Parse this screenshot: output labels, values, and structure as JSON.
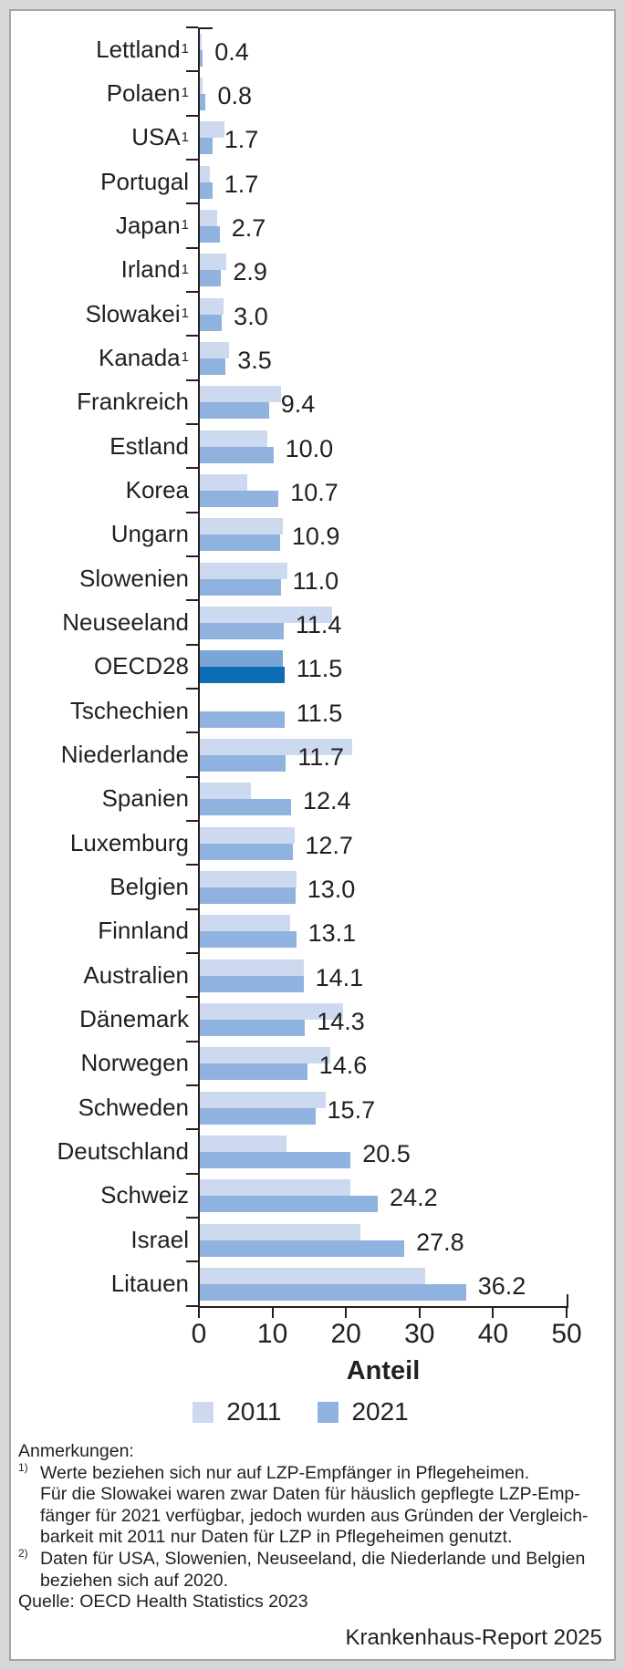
{
  "chart_data": {
    "type": "bar",
    "orientation": "horizontal",
    "xlabel": "Anteil",
    "xlim": [
      0,
      50
    ],
    "xticks": [
      0,
      10,
      20,
      30,
      40,
      50
    ],
    "grid": false,
    "legend_position": "bottom",
    "series_names": [
      "2011",
      "2021"
    ],
    "value_labels_shown_for": "2021",
    "rows": [
      {
        "label": "Lettland",
        "footnote_marker": "1",
        "v2011": 0.3,
        "v2021": 0.4,
        "value_label": "0.4",
        "highlight": false
      },
      {
        "label": "Polaen",
        "footnote_marker": "1",
        "v2011": 0.4,
        "v2021": 0.8,
        "value_label": "0.8",
        "highlight": false
      },
      {
        "label": "USA",
        "footnote_marker": "1",
        "v2011": 3.4,
        "v2021": 1.7,
        "value_label": "1.7",
        "highlight": false
      },
      {
        "label": "Portugal",
        "footnote_marker": "",
        "v2011": 1.4,
        "v2021": 1.7,
        "value_label": "1.7",
        "highlight": false
      },
      {
        "label": "Japan",
        "footnote_marker": "1",
        "v2011": 2.4,
        "v2021": 2.7,
        "value_label": "2.7",
        "highlight": false
      },
      {
        "label": "Irland",
        "footnote_marker": "1",
        "v2011": 3.6,
        "v2021": 2.9,
        "value_label": "2.9",
        "highlight": false
      },
      {
        "label": "Slowakei",
        "footnote_marker": "1",
        "v2011": 3.2,
        "v2021": 3.0,
        "value_label": "3.0",
        "highlight": false
      },
      {
        "label": "Kanada",
        "footnote_marker": "1",
        "v2011": 4.0,
        "v2021": 3.5,
        "value_label": "3.5",
        "highlight": false
      },
      {
        "label": "Frankreich",
        "footnote_marker": "",
        "v2011": 11.1,
        "v2021": 9.4,
        "value_label": "9.4",
        "highlight": false
      },
      {
        "label": "Estland",
        "footnote_marker": "",
        "v2011": 9.2,
        "v2021": 10.0,
        "value_label": "10.0",
        "highlight": false
      },
      {
        "label": "Korea",
        "footnote_marker": "",
        "v2011": 6.5,
        "v2021": 10.7,
        "value_label": "10.7",
        "highlight": false
      },
      {
        "label": "Ungarn",
        "footnote_marker": "",
        "v2011": 11.3,
        "v2021": 10.9,
        "value_label": "10.9",
        "highlight": false
      },
      {
        "label": "Slowenien",
        "footnote_marker": "",
        "v2011": 11.9,
        "v2021": 11.0,
        "value_label": "11.0",
        "highlight": false
      },
      {
        "label": "Neuseeland",
        "footnote_marker": "",
        "v2011": 18.0,
        "v2021": 11.4,
        "value_label": "11.4",
        "highlight": false
      },
      {
        "label": "OECD28",
        "footnote_marker": "",
        "v2011": 11.3,
        "v2021": 11.5,
        "value_label": "11.5",
        "highlight": true
      },
      {
        "label": "Tschechien",
        "footnote_marker": "",
        "v2011": null,
        "v2021": 11.5,
        "value_label": "11.5",
        "highlight": false
      },
      {
        "label": "Niederlande",
        "footnote_marker": "",
        "v2011": 20.7,
        "v2021": 11.7,
        "value_label": "11.7",
        "highlight": false
      },
      {
        "label": "Spanien",
        "footnote_marker": "",
        "v2011": 7.0,
        "v2021": 12.4,
        "value_label": "12.4",
        "highlight": false
      },
      {
        "label": "Luxemburg",
        "footnote_marker": "",
        "v2011": 12.9,
        "v2021": 12.7,
        "value_label": "12.7",
        "highlight": false
      },
      {
        "label": "Belgien",
        "footnote_marker": "",
        "v2011": 13.2,
        "v2021": 13.0,
        "value_label": "13.0",
        "highlight": false
      },
      {
        "label": "Finnland",
        "footnote_marker": "",
        "v2011": 12.3,
        "v2021": 13.1,
        "value_label": "13.1",
        "highlight": false
      },
      {
        "label": "Australien",
        "footnote_marker": "",
        "v2011": 14.2,
        "v2021": 14.1,
        "value_label": "14.1",
        "highlight": false
      },
      {
        "label": "Dänemark",
        "footnote_marker": "",
        "v2011": 19.5,
        "v2021": 14.3,
        "value_label": "14.3",
        "highlight": false
      },
      {
        "label": "Norwegen",
        "footnote_marker": "",
        "v2011": 17.7,
        "v2021": 14.6,
        "value_label": "14.6",
        "highlight": false
      },
      {
        "label": "Schweden",
        "footnote_marker": "",
        "v2011": 17.1,
        "v2021": 15.7,
        "value_label": "15.7",
        "highlight": false
      },
      {
        "label": "Deutschland",
        "footnote_marker": "",
        "v2011": 11.8,
        "v2021": 20.5,
        "value_label": "20.5",
        "highlight": false
      },
      {
        "label": "Schweiz",
        "footnote_marker": "",
        "v2011": 20.5,
        "v2021": 24.2,
        "value_label": "24.2",
        "highlight": false
      },
      {
        "label": "Israel",
        "footnote_marker": "",
        "v2011": 21.8,
        "v2021": 27.8,
        "value_label": "27.8",
        "highlight": false
      },
      {
        "label": "Litauen",
        "footnote_marker": "",
        "v2011": 30.6,
        "v2021": 36.2,
        "value_label": "36.2",
        "highlight": false
      }
    ],
    "legend": [
      {
        "label": "2011",
        "color": "#ccd9ef"
      },
      {
        "label": "2021",
        "color": "#8fb2de"
      }
    ]
  },
  "colors": {
    "bar_2011": "#ccd9ef",
    "bar_2021": "#8fb2de",
    "oecd_2011": "#7aa6d6",
    "oecd_2021": "#0e6cb4",
    "axis": "#231f20",
    "text": "#231f20",
    "panel_border": "#a5a5a5",
    "page_bg": "#d7d7d7"
  },
  "notes": {
    "lines": [
      {
        "marker": "",
        "indent": false,
        "text": "Anmerkungen:"
      },
      {
        "marker": "1)",
        "indent": false,
        "text": "Werte beziehen sich nur auf LZP-Empfänger in Pflegeheimen."
      },
      {
        "marker": "",
        "indent": true,
        "text": "Für die Slowakei waren zwar Daten für häuslich gepflegte LZP-Emp-"
      },
      {
        "marker": "",
        "indent": true,
        "text": "fänger für 2021 verfügbar, jedoch wurden aus Gründen der Vergleich-"
      },
      {
        "marker": "",
        "indent": true,
        "text": "barkeit mit 2011 nur Daten für LZP in Pflegeheimen genutzt."
      },
      {
        "marker": "2)",
        "indent": false,
        "text": "Daten für USA, Slowenien, Neuseeland, die Niederlande und Belgien"
      },
      {
        "marker": "",
        "indent": true,
        "text": "beziehen sich auf 2020."
      },
      {
        "marker": "",
        "indent": false,
        "text": "Quelle: OECD Health Statistics 2023"
      }
    ]
  },
  "ui": {
    "footer": "Krankenhaus-Report 2025"
  }
}
